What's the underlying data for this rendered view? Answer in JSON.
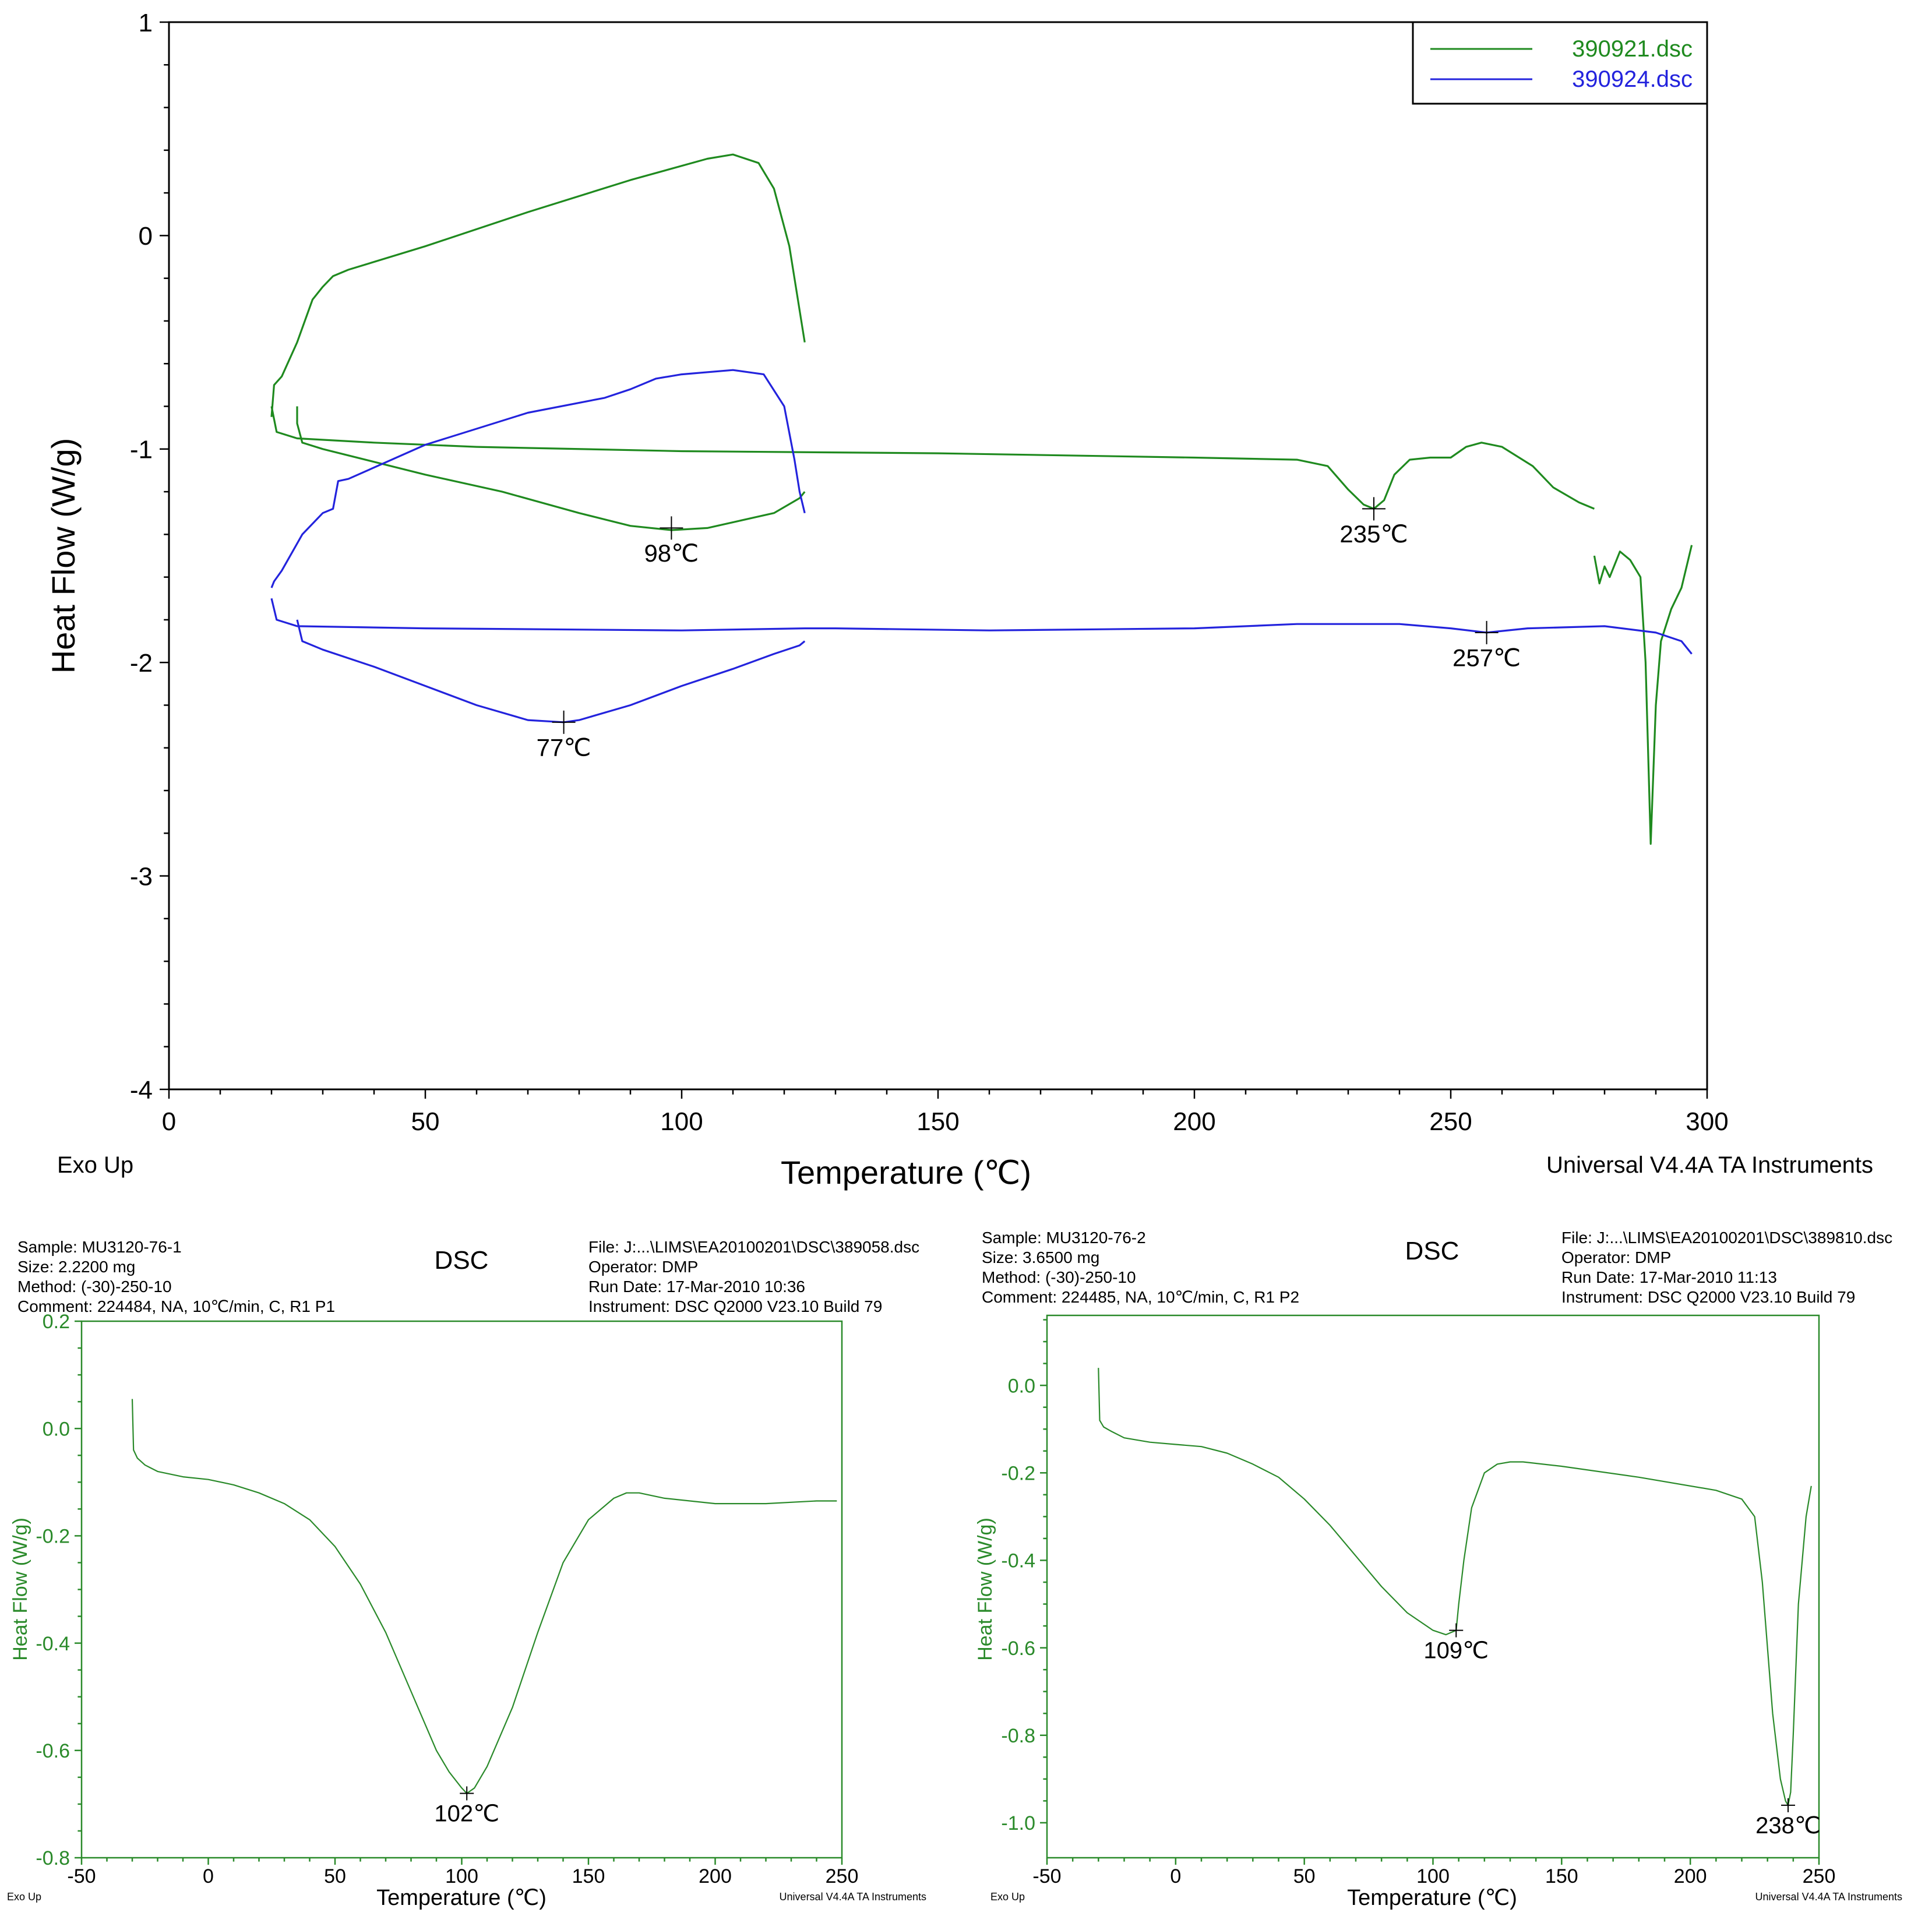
{
  "chart_data": [
    {
      "type": "line",
      "ylabel": "Heat Flow (W/g)",
      "xlabel": "Temperature (℃)",
      "xlim": [
        0,
        300
      ],
      "ylim": [
        -4,
        1
      ],
      "x_ticks": [
        "0",
        "50",
        "100",
        "150",
        "200",
        "250",
        "300"
      ],
      "y_ticks": [
        "-4",
        "-3",
        "-2",
        "-1",
        "0",
        "1"
      ],
      "footer_left": "Exo Up",
      "footer_right": "Universal V4.4A TA Instruments",
      "legend_position": "top-right",
      "legend": [
        "390921.dsc",
        "390924.dsc"
      ],
      "series": [
        {
          "name": "390921.dsc",
          "color": "#1f8a1f",
          "segments": [
            {
              "x": [
                20,
                20.5,
                22,
                25,
                28,
                30,
                32,
                35,
                50,
                70,
                90,
                105,
                110,
                115,
                118,
                121,
                123,
                124
              ],
              "y": [
                -0.85,
                -0.7,
                -0.66,
                -0.5,
                -0.3,
                -0.24,
                -0.19,
                -0.16,
                -0.05,
                0.11,
                0.26,
                0.36,
                0.38,
                0.34,
                0.22,
                -0.05,
                -0.35,
                -0.5
              ]
            },
            {
              "x": [
                124,
                123,
                118,
                105,
                98,
                90,
                80,
                65,
                50,
                40,
                30,
                26,
                25,
                25
              ],
              "y": [
                -1.2,
                -1.23,
                -1.3,
                -1.37,
                -1.38,
                -1.36,
                -1.3,
                -1.2,
                -1.12,
                -1.06,
                -1.0,
                -0.97,
                -0.88,
                -0.8
              ]
            },
            {
              "x": [
                20,
                21,
                25,
                40,
                60,
                100,
                150,
                200,
                220,
                226,
                230,
                233,
                235,
                237,
                239,
                242,
                246,
                250,
                253,
                256,
                260,
                266,
                270,
                275,
                278
              ],
              "y": [
                -0.8,
                -0.92,
                -0.95,
                -0.97,
                -0.99,
                -1.01,
                -1.02,
                -1.04,
                -1.05,
                -1.08,
                -1.19,
                -1.26,
                -1.28,
                -1.24,
                -1.12,
                -1.05,
                -1.04,
                -1.04,
                -0.99,
                -0.97,
                -0.99,
                -1.08,
                -1.18,
                -1.25,
                -1.28
              ]
            },
            {
              "x": [
                278,
                279,
                280,
                281,
                283,
                285,
                287,
                288,
                289,
                290,
                291,
                293,
                295,
                297
              ],
              "y": [
                -1.5,
                -1.63,
                -1.55,
                -1.6,
                -1.48,
                -1.52,
                -1.6,
                -2.0,
                -2.85,
                -2.2,
                -1.9,
                -1.75,
                -1.65,
                -1.45
              ]
            }
          ]
        },
        {
          "name": "390924.dsc",
          "color": "#2323dd",
          "segments": [
            {
              "x": [
                20,
                20.5,
                22,
                26,
                30,
                32,
                33,
                35,
                50,
                70,
                85,
                90,
                95,
                100,
                110,
                116,
                120,
                122,
                123,
                124
              ],
              "y": [
                -1.65,
                -1.62,
                -1.57,
                -1.4,
                -1.3,
                -1.28,
                -1.15,
                -1.14,
                -0.98,
                -0.83,
                -0.76,
                -0.72,
                -0.67,
                -0.65,
                -0.63,
                -0.65,
                -0.8,
                -1.05,
                -1.2,
                -1.3
              ]
            },
            {
              "x": [
                124,
                123,
                118,
                110,
                100,
                90,
                80,
                77,
                70,
                60,
                50,
                40,
                30,
                26,
                25
              ],
              "y": [
                -1.9,
                -1.92,
                -1.96,
                -2.03,
                -2.11,
                -2.2,
                -2.27,
                -2.28,
                -2.27,
                -2.2,
                -2.11,
                -2.02,
                -1.94,
                -1.9,
                -1.8
              ]
            },
            {
              "x": [
                20,
                21,
                25,
                50,
                100,
                124,
                130,
                160,
                200,
                220,
                240,
                250,
                257,
                265,
                280,
                290,
                295,
                297
              ],
              "y": [
                -1.7,
                -1.8,
                -1.83,
                -1.84,
                -1.85,
                -1.84,
                -1.84,
                -1.85,
                -1.84,
                -1.82,
                -1.82,
                -1.84,
                -1.86,
                -1.84,
                -1.83,
                -1.86,
                -1.9,
                -1.96
              ]
            }
          ]
        }
      ],
      "annotations": [
        {
          "x": 98,
          "y": -1.37,
          "label": "98℃"
        },
        {
          "x": 235,
          "y": -1.28,
          "label": "235℃"
        },
        {
          "x": 77,
          "y": -2.28,
          "label": "77℃"
        },
        {
          "x": 257,
          "y": -1.86,
          "label": "257℃"
        }
      ]
    },
    {
      "type": "line",
      "ylabel": "Heat Flow (W/g)",
      "xlabel": "Temperature (℃)",
      "xlim": [
        -50,
        250
      ],
      "ylim": [
        -0.8,
        0.2
      ],
      "x_ticks": [
        "-50",
        "0",
        "50",
        "100",
        "150",
        "200",
        "250"
      ],
      "y_ticks": [
        "-0.8",
        "-0.6",
        "-0.4",
        "-0.2",
        "0.0",
        "0.2"
      ],
      "title": "DSC",
      "footer_left": "Exo Up",
      "footer_right": "Universal V4.4A TA Instruments",
      "info_left": [
        "Sample: MU3120-76-1",
        "Size:  2.2200 mg",
        "Method: (-30)-250-10",
        "Comment: 224484, NA, 10℃/min, C, R1 P1"
      ],
      "info_right": [
        "File: J:...\\LIMS\\EA20100201\\DSC\\389058.dsc",
        "Operator: DMP",
        "Run Date: 17-Mar-2010 10:36",
        "Instrument: DSC Q2000 V23.10 Build 79"
      ],
      "series": [
        {
          "color": "#2a8a2a",
          "segments": [
            {
              "x": [
                -30,
                -29.5,
                -28,
                -25,
                -20,
                -10,
                0,
                10,
                20,
                30,
                40,
                50,
                60,
                70,
                80,
                90,
                95,
                100,
                102,
                105,
                110,
                120,
                130,
                140,
                150,
                160,
                165,
                170,
                180,
                200,
                220,
                240,
                248
              ],
              "y": [
                0.055,
                -0.04,
                -0.055,
                -0.068,
                -0.08,
                -0.09,
                -0.095,
                -0.105,
                -0.12,
                -0.14,
                -0.17,
                -0.22,
                -0.29,
                -0.38,
                -0.49,
                -0.6,
                -0.64,
                -0.67,
                -0.68,
                -0.67,
                -0.63,
                -0.52,
                -0.38,
                -0.25,
                -0.17,
                -0.13,
                -0.12,
                -0.12,
                -0.13,
                -0.14,
                -0.14,
                -0.135,
                -0.135
              ]
            }
          ]
        }
      ],
      "annotations": [
        {
          "x": 102,
          "y": -0.68,
          "label": "102℃"
        }
      ]
    },
    {
      "type": "line",
      "ylabel": "Heat Flow (W/g)",
      "xlabel": "Temperature (℃)",
      "xlim": [
        -50,
        250
      ],
      "ylim": [
        -1.08,
        0.16
      ],
      "x_ticks": [
        "-50",
        "0",
        "50",
        "100",
        "150",
        "200",
        "250"
      ],
      "y_ticks": [
        "-1.0",
        "-0.8",
        "-0.6",
        "-0.4",
        "-0.2",
        "0.0"
      ],
      "title": "DSC",
      "footer_left": "Exo Up",
      "footer_right": "Universal V4.4A TA Instruments",
      "info_left": [
        "Sample: MU3120-76-2",
        "Size:  3.6500 mg",
        "Method: (-30)-250-10",
        "Comment: 224485, NA, 10℃/min, C, R1 P2"
      ],
      "info_right": [
        "File: J:...\\LIMS\\EA20100201\\DSC\\389810.dsc",
        "Operator: DMP",
        "Run Date: 17-Mar-2010 11:13",
        "Instrument: DSC Q2000 V23.10 Build 79"
      ],
      "series": [
        {
          "color": "#2a8a2a",
          "segments": [
            {
              "x": [
                -30,
                -29.5,
                -28,
                -25,
                -20,
                -10,
                0,
                10,
                20,
                30,
                40,
                50,
                60,
                70,
                80,
                90,
                100,
                105,
                109,
                110,
                112,
                115,
                120,
                125,
                130,
                135,
                150,
                180,
                210,
                220,
                225,
                228,
                232,
                235,
                237,
                238,
                239,
                240,
                242,
                245,
                247
              ],
              "y": [
                0.04,
                -0.08,
                -0.095,
                -0.105,
                -0.12,
                -0.13,
                -0.135,
                -0.14,
                -0.155,
                -0.18,
                -0.21,
                -0.26,
                -0.32,
                -0.39,
                -0.46,
                -0.52,
                -0.56,
                -0.57,
                -0.56,
                -0.5,
                -0.4,
                -0.28,
                -0.2,
                -0.18,
                -0.175,
                -0.175,
                -0.185,
                -0.21,
                -0.24,
                -0.26,
                -0.3,
                -0.45,
                -0.75,
                -0.9,
                -0.95,
                -0.96,
                -0.93,
                -0.8,
                -0.5,
                -0.3,
                -0.23
              ]
            }
          ]
        }
      ],
      "annotations": [
        {
          "x": 109,
          "y": -0.56,
          "label": "109℃"
        },
        {
          "x": 238,
          "y": -0.96,
          "label": "238℃"
        }
      ]
    }
  ]
}
